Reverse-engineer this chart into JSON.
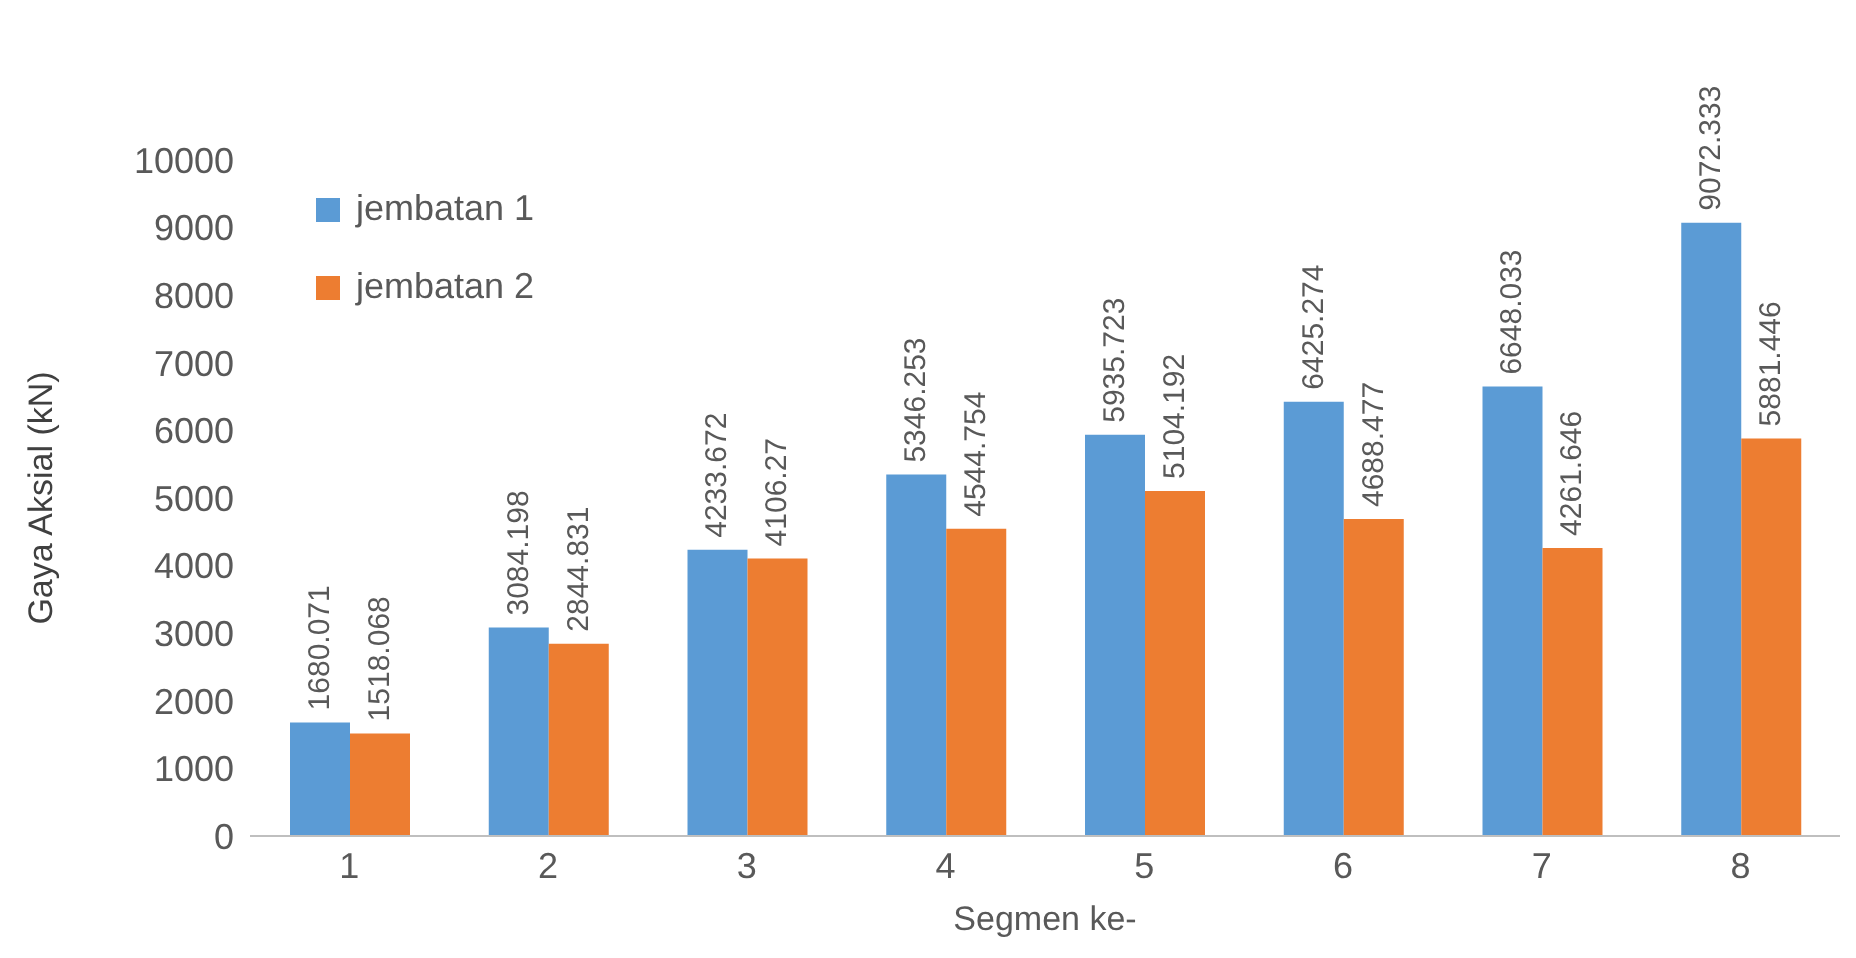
{
  "chart_data": {
    "type": "bar",
    "xlabel": "Segmen ke-",
    "ylabel": "Gaya Aksial (kN)",
    "categories": [
      "1",
      "2",
      "3",
      "4",
      "5",
      "6",
      "7",
      "8"
    ],
    "series": [
      {
        "name": "jembatan 1",
        "color": "#5b9bd5",
        "values": [
          1680.071,
          3084.198,
          4233.672,
          5346.253,
          5935.723,
          6425.274,
          6648.033,
          9072.333
        ]
      },
      {
        "name": "jembatan 2",
        "color": "#ed7d31",
        "values": [
          1518.068,
          2844.831,
          4106.27,
          4544.754,
          5104.192,
          4688.477,
          4261.646,
          5881.446
        ]
      }
    ],
    "ylim": [
      0,
      10000
    ],
    "yticks": [
      0,
      1000,
      2000,
      3000,
      4000,
      5000,
      6000,
      7000,
      8000,
      9000,
      10000
    ],
    "data_labels": true,
    "legend": "top left",
    "grid": false
  }
}
